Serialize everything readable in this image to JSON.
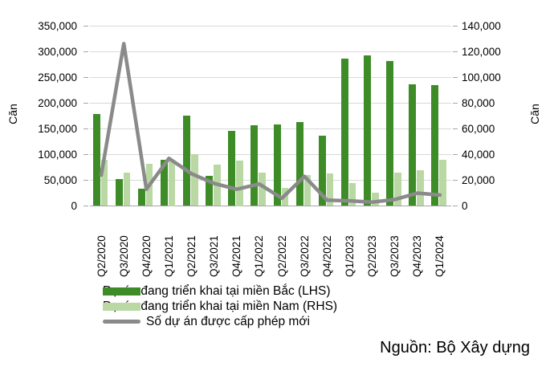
{
  "chart_data": {
    "type": "combo-bar-line",
    "title": "",
    "categories": [
      "Q2/2020",
      "Q3/2020",
      "Q4/2020",
      "Q1/2021",
      "Q2/2021",
      "Q3/2021",
      "Q4/2021",
      "Q1/2022",
      "Q2/2022",
      "Q3/2022",
      "Q4/2022",
      "Q1/2023",
      "Q2/2023",
      "Q3/2023",
      "Q4/2023",
      "Q1/2024"
    ],
    "series": [
      {
        "name": "Dự án đang triển khai tại miền Bắc (LHS)",
        "type": "bar",
        "axis": "left",
        "color": "#3E8C28",
        "values": [
          178000,
          52000,
          34000,
          90000,
          176000,
          58000,
          145000,
          157000,
          158000,
          163000,
          136000,
          286000,
          293000,
          281000,
          236000,
          234000
        ]
      },
      {
        "name": "Dự án đang triển khai tại miền Nam (RHS)",
        "type": "bar",
        "axis": "right",
        "color": "#B9D8A3",
        "values": [
          36000,
          26000,
          33000,
          35000,
          40000,
          32000,
          35000,
          26000,
          14000,
          24000,
          25000,
          18000,
          10000,
          26000,
          28000,
          36000
        ]
      },
      {
        "name": "Số dự án được cấp phép mới",
        "type": "line",
        "axis": "right",
        "color": "#8A8A8A",
        "values": [
          24000,
          126000,
          13000,
          37000,
          25000,
          17500,
          13000,
          17000,
          6000,
          23000,
          4500,
          4000,
          3000,
          5000,
          10000,
          8500
        ]
      }
    ],
    "left_axis": {
      "title": "Căn",
      "min": 0,
      "max": 350000,
      "step": 50000,
      "tick_labels": [
        "0",
        "50,000",
        "100,000",
        "150,000",
        "200,000",
        "250,000",
        "300,000",
        "350,000"
      ]
    },
    "right_axis": {
      "title": "Căn",
      "min": 0,
      "max": 140000,
      "step": 20000,
      "tick_labels": [
        "0",
        "20,000",
        "40,000",
        "60,000",
        "80,000",
        "100,000",
        "120,000",
        "140,000"
      ]
    },
    "grid": true,
    "legend_position": "bottom-left",
    "source": "Nguồn: Bộ Xây dựng"
  },
  "colors": {
    "background": "#FFFFFF",
    "gridline": "#D9D9D9",
    "axis_line": "#A6A6A6",
    "text": "#000000"
  }
}
